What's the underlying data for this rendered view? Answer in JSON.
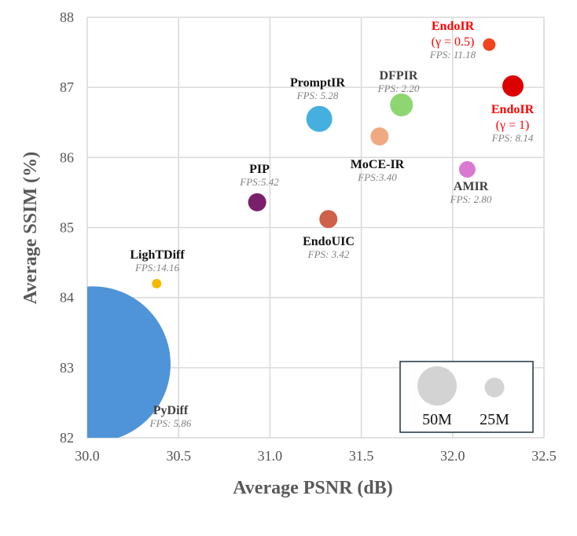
{
  "chart_data": {
    "type": "scatter",
    "subtype": "bubble",
    "title": "",
    "xlabel": "Average PSNR (dB)",
    "ylabel": "Average SSIM (%)",
    "xlim": [
      30.0,
      32.5
    ],
    "ylim": [
      82,
      88
    ],
    "xticks": [
      "30.0",
      "30.5",
      "31.0",
      "31.5",
      "32.0",
      "32.5"
    ],
    "yticks": [
      "82",
      "83",
      "84",
      "85",
      "86",
      "87",
      "88"
    ],
    "grid": true,
    "points": [
      {
        "name": "PyDiff",
        "sub": "",
        "fps": "FPS: 5.86",
        "x": 30.03,
        "y": 83.05,
        "size_m": 198,
        "color": "#4F94D8",
        "label_color": "#404040"
      },
      {
        "name": "LighTDiff",
        "sub": "",
        "fps": "FPS:14.16",
        "x": 30.38,
        "y": 84.2,
        "size_m": 12,
        "color": "#F5B800",
        "label_color": "#111111"
      },
      {
        "name": "PIP",
        "sub": "",
        "fps": "FPS:5.42",
        "x": 30.93,
        "y": 85.36,
        "size_m": 23,
        "color": "#7A1F6B",
        "label_color": "#111111"
      },
      {
        "name": "PromptIR",
        "sub": "",
        "fps": "FPS: 5.28",
        "x": 31.27,
        "y": 86.55,
        "size_m": 33,
        "color": "#45B0E0",
        "label_color": "#111111"
      },
      {
        "name": "EndoUIC",
        "sub": "",
        "fps": "FPS: 3.42",
        "x": 31.32,
        "y": 85.12,
        "size_m": 23,
        "color": "#D0604A",
        "label_color": "#111111"
      },
      {
        "name": "MoCE-IR",
        "sub": "",
        "fps": "FPS:3.40",
        "x": 31.6,
        "y": 86.3,
        "size_m": 23,
        "color": "#F0A982",
        "label_color": "#111111"
      },
      {
        "name": "DFPIR",
        "sub": "",
        "fps": "FPS: 2.20",
        "x": 31.72,
        "y": 86.75,
        "size_m": 29,
        "color": "#8DD672",
        "label_color": "#404040"
      },
      {
        "name": "AMIR",
        "sub": "",
        "fps": "FPS: 2.80",
        "x": 32.08,
        "y": 85.83,
        "size_m": 21,
        "color": "#D77AD0",
        "label_color": "#404040"
      },
      {
        "name": "EndoIR",
        "sub": "(γ = 0.5)",
        "fps": "FPS: 11.18",
        "x": 32.2,
        "y": 87.61,
        "size_m": 16,
        "color": "#F0441E",
        "label_color": "#FF0000"
      },
      {
        "name": "EndoIR",
        "sub": "(γ = 1)",
        "fps": "FPS: 8.14",
        "x": 32.33,
        "y": 87.02,
        "size_m": 27,
        "color": "#DD0000",
        "label_color": "#FF0000"
      }
    ],
    "legend": {
      "placement": "bottom-right",
      "items": [
        {
          "label": "50M",
          "size_m": 50,
          "color": "#D3D3D3"
        },
        {
          "label": "25M",
          "size_m": 25,
          "color": "#D3D3D3"
        }
      ]
    }
  }
}
